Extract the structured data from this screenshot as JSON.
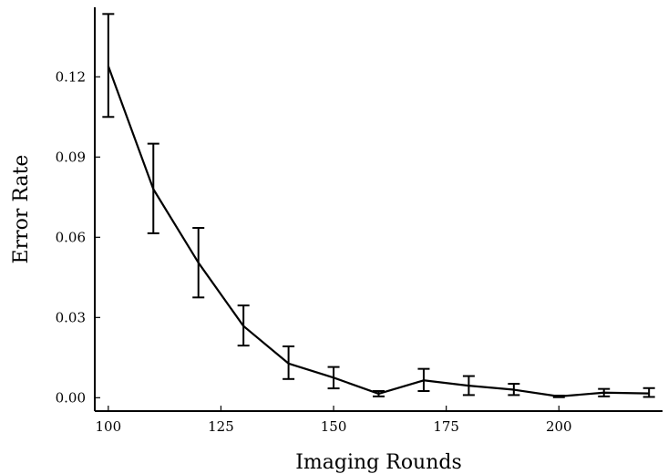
{
  "chart_data": {
    "type": "line",
    "title": "",
    "xlabel": "Imaging Rounds",
    "ylabel": "Error Rate",
    "x": [
      100,
      110,
      120,
      130,
      140,
      150,
      160,
      170,
      180,
      190,
      200,
      210,
      220
    ],
    "series": [
      {
        "values": [
          0.124,
          0.078,
          0.0505,
          0.0268,
          0.0128,
          0.0075,
          0.0015,
          0.0065,
          0.0045,
          0.003,
          0.0005,
          0.0019,
          0.0016
        ],
        "error_low": [
          0.105,
          0.0615,
          0.0375,
          0.0195,
          0.007,
          0.0035,
          0.0005,
          0.0025,
          0.001,
          0.001,
          0.0002,
          0.0005,
          0.0003
        ],
        "error_high": [
          0.1435,
          0.095,
          0.0635,
          0.0345,
          0.0192,
          0.0115,
          0.0025,
          0.0108,
          0.0081,
          0.0052,
          0.0008,
          0.0033,
          0.0036
        ],
        "color": "#000000"
      }
    ],
    "xlim": [
      97,
      223
    ],
    "ylim": [
      -0.005,
      0.146
    ],
    "x_ticks": [
      "100",
      "125",
      "150",
      "175",
      "200"
    ],
    "x_tick_values": [
      100,
      125,
      150,
      175,
      200
    ],
    "y_ticks": [
      "0.00",
      "0.03",
      "0.06",
      "0.09",
      "0.12"
    ],
    "y_tick_values": [
      0,
      0.03,
      0.06,
      0.09,
      0.12
    ],
    "grid": false,
    "legend": "none",
    "error_bars": true
  }
}
